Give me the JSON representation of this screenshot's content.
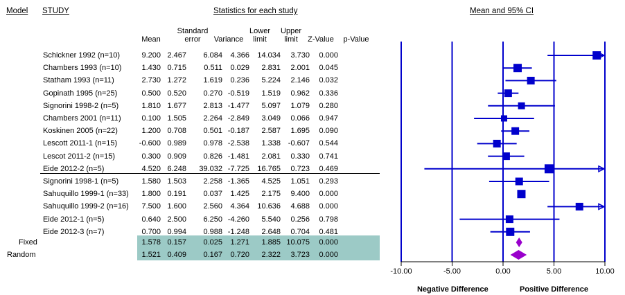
{
  "headers": {
    "model": "Model",
    "study": "STUDY",
    "stats_title": "Statistics for each study",
    "plot_title": "Mean and 95% CI",
    "columns": [
      [
        "Mean"
      ],
      [
        "Standard",
        "error"
      ],
      [
        "Variance"
      ],
      [
        "Lower",
        "limit"
      ],
      [
        "Upper",
        "limit"
      ],
      [
        "Z-Value"
      ],
      [
        "p-Value"
      ]
    ]
  },
  "studies": [
    {
      "name": "Schickner 1992 (n=10)",
      "values": [
        "9.200",
        "2.467",
        "6.084",
        "4.366",
        "14.034",
        "3.730",
        "0.000"
      ]
    },
    {
      "name": "Chambers 1993 (n=10)",
      "values": [
        "1.430",
        "0.715",
        "0.511",
        "0.029",
        "2.831",
        "2.001",
        "0.045"
      ]
    },
    {
      "name": "Statham 1993 (n=11)",
      "values": [
        "2.730",
        "1.272",
        "1.619",
        "0.236",
        "5.224",
        "2.146",
        "0.032"
      ]
    },
    {
      "name": "Gopinath 1995 (n=25)",
      "values": [
        "0.500",
        "0.520",
        "0.270",
        "-0.519",
        "1.519",
        "0.962",
        "0.336"
      ]
    },
    {
      "name": "Signorini 1998-2 (n=5)",
      "values": [
        "1.810",
        "1.677",
        "2.813",
        "-1.477",
        "5.097",
        "1.079",
        "0.280"
      ]
    },
    {
      "name": "Chambers 2001 (n=11)",
      "values": [
        "0.100",
        "1.505",
        "2.264",
        "-2.849",
        "3.049",
        "0.066",
        "0.947"
      ]
    },
    {
      "name": "Koskinen 2005 (n=22)",
      "values": [
        "1.200",
        "0.708",
        "0.501",
        "-0.187",
        "2.587",
        "1.695",
        "0.090"
      ]
    },
    {
      "name": "Lescott 2011-1 (n=15)",
      "values": [
        "-0.600",
        "0.989",
        "0.978",
        "-2.538",
        "1.338",
        "-0.607",
        "0.544"
      ]
    },
    {
      "name": "Lescot 2011-2 (n=15)",
      "values": [
        "0.300",
        "0.909",
        "0.826",
        "-1.481",
        "2.081",
        "0.330",
        "0.741"
      ]
    },
    {
      "name": "Eide 2012-2 (n=5)",
      "values": [
        "4.520",
        "6.248",
        "39.032",
        "-7.725",
        "16.765",
        "0.723",
        "0.469"
      ]
    },
    {
      "name": "Signorini 1998-1 (n=5)",
      "values": [
        "1.580",
        "1.503",
        "2.258",
        "-1.365",
        "4.525",
        "1.051",
        "0.293"
      ]
    },
    {
      "name": "Sahuquillo 1999-1 (n=33)",
      "values": [
        "1.800",
        "0.191",
        "0.037",
        "1.425",
        "2.175",
        "9.400",
        "0.000"
      ]
    },
    {
      "name": "Sahuquillo 1999-2 (n=16)",
      "values": [
        "7.500",
        "1.600",
        "2.560",
        "4.364",
        "10.636",
        "4.688",
        "0.000"
      ]
    },
    {
      "name": "Eide 2012-1 (n=5)",
      "values": [
        "0.640",
        "2.500",
        "6.250",
        "-4.260",
        "5.540",
        "0.256",
        "0.798"
      ]
    },
    {
      "name": "Eide 2012-3 (n=7)",
      "values": [
        "0.700",
        "0.994",
        "0.988",
        "-1.248",
        "2.648",
        "0.704",
        "0.481"
      ]
    }
  ],
  "summary": [
    {
      "model": "Fixed",
      "values": [
        "1.578",
        "0.157",
        "0.025",
        "1.271",
        "1.885",
        "10.075",
        "0.000"
      ]
    },
    {
      "model": "Random",
      "values": [
        "1.521",
        "0.409",
        "0.167",
        "0.720",
        "2.322",
        "3.723",
        "0.000"
      ]
    }
  ],
  "footer": {
    "negative_label": "Negative Difference",
    "positive_label": "Positive Difference"
  },
  "colors": {
    "study_marker": "#0000cc",
    "summary_marker": "#9900cc",
    "summary_bg": "#9ccac6"
  },
  "chart_data": {
    "type": "forest",
    "title": "Mean and 95% CI",
    "xlim": [
      -10,
      10
    ],
    "x_ticks": [
      "-10.00",
      "-5.00",
      "0.00",
      "5.00",
      "10.00"
    ],
    "reference_lines": [
      -10,
      -5,
      0,
      5,
      10
    ],
    "studies": [
      {
        "name": "Schickner 1992 (n=10)",
        "mean": 9.2,
        "lower": 4.366,
        "upper": 14.034
      },
      {
        "name": "Chambers 1993 (n=10)",
        "mean": 1.43,
        "lower": 0.029,
        "upper": 2.831
      },
      {
        "name": "Statham 1993 (n=11)",
        "mean": 2.73,
        "lower": 0.236,
        "upper": 5.224
      },
      {
        "name": "Gopinath 1995 (n=25)",
        "mean": 0.5,
        "lower": -0.519,
        "upper": 1.519
      },
      {
        "name": "Signorini 1998-2 (n=5)",
        "mean": 1.81,
        "lower": -1.477,
        "upper": 5.097
      },
      {
        "name": "Chambers 2001 (n=11)",
        "mean": 0.1,
        "lower": -2.849,
        "upper": 3.049
      },
      {
        "name": "Koskinen 2005 (n=22)",
        "mean": 1.2,
        "lower": -0.187,
        "upper": 2.587
      },
      {
        "name": "Lescott 2011-1 (n=15)",
        "mean": -0.6,
        "lower": -2.538,
        "upper": 1.338
      },
      {
        "name": "Lescot 2011-2 (n=15)",
        "mean": 0.3,
        "lower": -1.481,
        "upper": 2.081
      },
      {
        "name": "Eide 2012-2 (n=5)",
        "mean": 4.52,
        "lower": -7.725,
        "upper": 16.765
      },
      {
        "name": "Signorini 1998-1 (n=5)",
        "mean": 1.58,
        "lower": -1.365,
        "upper": 4.525
      },
      {
        "name": "Sahuquillo 1999-1 (n=33)",
        "mean": 1.8,
        "lower": 1.425,
        "upper": 2.175
      },
      {
        "name": "Sahuquillo 1999-2 (n=16)",
        "mean": 7.5,
        "lower": 4.364,
        "upper": 10.636
      },
      {
        "name": "Eide 2012-1 (n=5)",
        "mean": 0.64,
        "lower": -4.26,
        "upper": 5.54
      },
      {
        "name": "Eide 2012-3 (n=7)",
        "mean": 0.7,
        "lower": -1.248,
        "upper": 2.648
      }
    ],
    "summary": [
      {
        "name": "Fixed",
        "mean": 1.578,
        "lower": 1.271,
        "upper": 1.885
      },
      {
        "name": "Random",
        "mean": 1.521,
        "lower": 0.72,
        "upper": 2.322
      }
    ]
  }
}
